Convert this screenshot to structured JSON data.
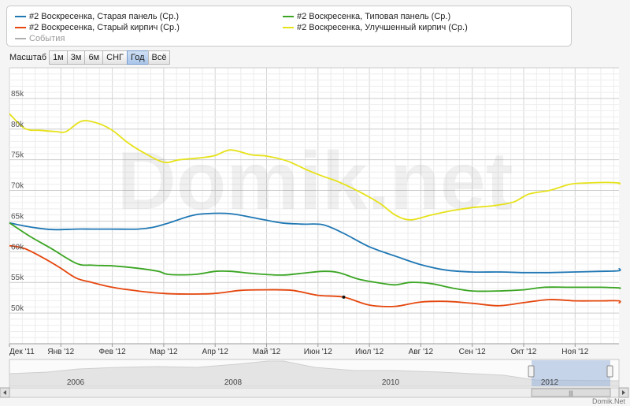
{
  "legend": [
    {
      "label": "#2 Воскресенка, Старая панель (Ср.)",
      "color": "#1f77b4"
    },
    {
      "label": "#2 Воскресенка, Типовая панель (Ср.)",
      "color": "#3aa522"
    },
    {
      "label": "#2 Воскресенка, Старый кирпич (Ср.)",
      "color": "#e5470e"
    },
    {
      "label": "#2 Воскресенка, Улучшенный кирпич (Ср.)",
      "color": "#e6e21a"
    },
    {
      "label": "События",
      "color": "#b0b0b0"
    }
  ],
  "toolbar": {
    "label": "Масштаб",
    "buttons": [
      "1м",
      "3м",
      "6м",
      "СНГ",
      "Год",
      "Всё"
    ],
    "active": "Год"
  },
  "watermark": "Domik.net",
  "footer": "Domik.Net",
  "navigator": {
    "years": [
      "2006",
      "2008",
      "2010",
      "2012"
    ]
  },
  "chart_data": {
    "type": "line",
    "x_tick_labels": [
      "Дек '11",
      "Янв '12",
      "Фев '12",
      "Мар '12",
      "Апр '12",
      "Май '12",
      "Июн '12",
      "Июл '12",
      "Авг '12",
      "Сен '12",
      "Окт '12",
      "Ноя '12"
    ],
    "y_tick_labels": [
      "50k",
      "55k",
      "60k",
      "65k",
      "70k",
      "75k",
      "80k",
      "85k"
    ],
    "ylim": [
      45000,
      90000
    ],
    "x_range_months": [
      0,
      12.35
    ],
    "grid": true,
    "series": [
      {
        "name": "#2 Воскресенка, Старая панель (Ср.)",
        "color": "#1f77b4",
        "x": [
          0,
          0.3,
          0.6,
          0.9,
          1.3,
          1.6,
          2.0,
          2.5,
          2.8,
          3.1,
          3.5,
          3.8,
          4.3,
          4.9,
          5.3,
          5.7,
          6.1,
          6.5,
          7.0,
          7.5,
          8.0,
          8.5,
          9.0,
          9.5,
          10.0,
          10.5,
          11.0,
          11.5,
          12.0,
          12.35
        ],
        "y": [
          64700,
          64200,
          63800,
          63600,
          63700,
          63700,
          63700,
          63700,
          64000,
          64700,
          65800,
          66200,
          66200,
          65300,
          64700,
          64500,
          64400,
          63000,
          60800,
          59300,
          57900,
          57000,
          56700,
          56700,
          56600,
          56600,
          56700,
          56800,
          56900,
          57300
        ]
      },
      {
        "name": "#2 Воскресенка, Типовая панель (Ср.)",
        "color": "#3aa522",
        "x": [
          0,
          0.4,
          0.8,
          1.3,
          1.6,
          2.0,
          2.5,
          2.9,
          3.1,
          3.6,
          4.0,
          4.3,
          4.8,
          5.3,
          5.7,
          6.1,
          6.4,
          6.8,
          7.2,
          7.5,
          7.8,
          8.2,
          8.6,
          9.0,
          9.5,
          10.0,
          10.4,
          10.9,
          11.5,
          12.0,
          12.35
        ],
        "y": [
          64700,
          62500,
          60600,
          58100,
          57800,
          57700,
          57300,
          56800,
          56300,
          56300,
          56800,
          56800,
          56400,
          56200,
          56500,
          56800,
          56600,
          55500,
          54900,
          54600,
          55000,
          54800,
          54100,
          53600,
          53600,
          53800,
          54200,
          54200,
          54200,
          54100,
          54000
        ]
      },
      {
        "name": "#2 Воскресенка, Старый кирпич (Ср.)",
        "color": "#e5470e",
        "x": [
          0,
          0.3,
          0.7,
          1.0,
          1.3,
          1.6,
          2.0,
          2.5,
          3.0,
          3.5,
          4.0,
          4.5,
          5.0,
          5.5,
          6.0,
          6.5,
          7.0,
          7.5,
          8.0,
          8.5,
          9.0,
          9.5,
          10.0,
          10.5,
          11.0,
          11.5,
          12.0,
          12.35
        ],
        "y": [
          61000,
          60500,
          58800,
          57300,
          55700,
          55000,
          54200,
          53600,
          53200,
          53100,
          53200,
          53700,
          53800,
          53700,
          52900,
          52600,
          51300,
          51100,
          51800,
          51900,
          51600,
          51200,
          51700,
          52200,
          52000,
          52000,
          52000,
          51600
        ]
      },
      {
        "name": "#2 Воскресенка, Улучшенный кирпич (Ср.)",
        "color": "#e6e21a",
        "x": [
          0,
          0.3,
          0.6,
          0.9,
          1.1,
          1.4,
          1.7,
          2.0,
          2.3,
          2.6,
          3.0,
          3.3,
          3.7,
          4.0,
          4.3,
          4.7,
          5.0,
          5.4,
          5.8,
          6.1,
          6.4,
          6.8,
          7.2,
          7.5,
          7.8,
          8.2,
          8.6,
          9.0,
          9.4,
          9.8,
          10.1,
          10.5,
          10.9,
          11.2,
          11.6,
          12.0,
          12.35
        ],
        "y": [
          82500,
          80100,
          79800,
          79600,
          79600,
          81300,
          81000,
          79800,
          77800,
          76200,
          74600,
          75000,
          75300,
          75700,
          76600,
          75800,
          75600,
          74800,
          73300,
          72300,
          71400,
          69800,
          67900,
          66000,
          65200,
          66000,
          66700,
          67200,
          67500,
          68100,
          69400,
          70000,
          71000,
          71200,
          71300,
          71200,
          71000
        ]
      }
    ],
    "annotations": [
      {
        "series": 2,
        "x": 6.5,
        "y": 52600
      }
    ]
  }
}
